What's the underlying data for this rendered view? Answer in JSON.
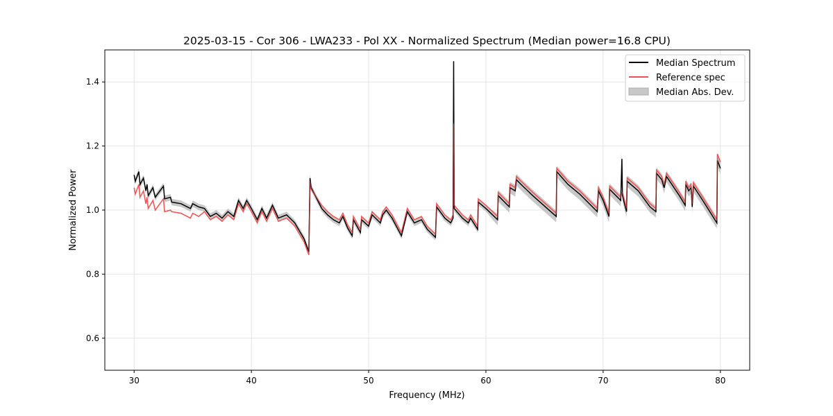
{
  "chart_data": {
    "type": "line",
    "title": "2025-03-15 - Cor 306 - LWA233 - Pol XX - Normalized Spectrum (Median power=16.8 CPU)",
    "xlabel": "Frequency (MHz)",
    "ylabel": "Normalized Power",
    "xlim": [
      27.5,
      82.5
    ],
    "ylim": [
      0.5,
      1.5
    ],
    "xticks": [
      30,
      40,
      50,
      60,
      70,
      80
    ],
    "yticks": [
      0.6,
      0.8,
      1.0,
      1.2,
      1.4
    ],
    "grid": true,
    "legend_position": "top-right",
    "colors": {
      "median": "#000000",
      "reference": "#f05050",
      "mad": "#b0b0b0",
      "overlap": "#8b0000"
    },
    "x": [
      30.0,
      30.1,
      30.4,
      30.5,
      30.8,
      31.0,
      31.1,
      31.2,
      31.6,
      31.8,
      32.5,
      32.6,
      33.1,
      33.2,
      34.0,
      34.8,
      35.0,
      35.5,
      36.0,
      36.5,
      37.0,
      37.5,
      38.0,
      38.5,
      38.9,
      39.3,
      39.6,
      40.0,
      40.5,
      40.9,
      41.3,
      41.8,
      42.3,
      43.0,
      43.7,
      44.5,
      44.9,
      45.0,
      45.1,
      46.0,
      46.5,
      47.0,
      47.5,
      47.8,
      48.2,
      48.6,
      48.7,
      49.3,
      49.4,
      50.0,
      50.3,
      51.0,
      51.2,
      51.5,
      52.0,
      52.5,
      52.8,
      53.3,
      53.9,
      54.5,
      55.0,
      55.7,
      55.8,
      56.5,
      57.0,
      57.2,
      57.25,
      57.3,
      58.0,
      58.5,
      58.7,
      59.3,
      59.35,
      60.0,
      61.0,
      61.05,
      62.0,
      62.05,
      62.5,
      62.6,
      63.0,
      64.0,
      66.0,
      66.05,
      67.0,
      68.0,
      69.5,
      69.6,
      70.0,
      70.5,
      70.55,
      71.5,
      71.6,
      71.65,
      72.0,
      72.05,
      73.0,
      74.0,
      74.5,
      74.55,
      75.0,
      75.2,
      75.4,
      76.5,
      77.0,
      77.05,
      77.3,
      77.5,
      77.6,
      77.7,
      78.5,
      79.7,
      79.75,
      80.0
    ],
    "series": [
      {
        "name": "Median Spectrum",
        "values": [
          1.11,
          1.09,
          1.12,
          1.08,
          1.1,
          1.06,
          1.08,
          1.045,
          1.07,
          1.04,
          1.075,
          1.035,
          1.04,
          1.025,
          1.02,
          1.005,
          1.02,
          1.01,
          1.005,
          0.98,
          0.99,
          0.975,
          0.995,
          0.98,
          1.03,
          1.005,
          1.03,
          1.005,
          0.97,
          1.005,
          0.975,
          1.015,
          0.975,
          0.985,
          0.96,
          0.91,
          0.87,
          1.1,
          1.07,
          1.005,
          0.985,
          0.97,
          0.96,
          0.98,
          0.945,
          0.92,
          0.97,
          0.93,
          0.97,
          0.95,
          0.985,
          0.96,
          0.985,
          1.0,
          0.975,
          0.94,
          0.92,
          0.995,
          0.96,
          0.97,
          0.94,
          0.915,
          1.01,
          0.975,
          0.96,
          0.975,
          1.465,
          1.005,
          0.975,
          0.96,
          0.975,
          0.94,
          1.025,
          1.005,
          0.97,
          1.045,
          1.01,
          1.07,
          1.06,
          1.095,
          1.08,
          1.045,
          0.98,
          1.12,
          1.08,
          1.05,
          0.995,
          1.06,
          1.03,
          0.98,
          1.065,
          1.03,
          1.16,
          1.045,
          0.995,
          1.09,
          1.06,
          1.01,
          0.995,
          1.115,
          1.095,
          1.07,
          1.105,
          1.045,
          1.015,
          1.08,
          1.06,
          1.07,
          1.01,
          1.075,
          1.03,
          0.96,
          1.155,
          1.13
        ]
      },
      {
        "name": "Reference spec",
        "values": [
          1.07,
          1.05,
          1.08,
          1.04,
          1.06,
          1.02,
          1.04,
          1.005,
          1.03,
          1.0,
          1.035,
          0.995,
          1.0,
          0.995,
          0.99,
          0.975,
          0.99,
          0.98,
          0.995,
          0.97,
          0.98,
          0.965,
          0.985,
          0.97,
          1.02,
          0.995,
          1.02,
          0.995,
          0.96,
          0.995,
          0.965,
          1.005,
          0.965,
          0.975,
          0.95,
          0.9,
          0.86,
          1.09,
          1.065,
          1.015,
          0.995,
          0.98,
          0.97,
          0.99,
          0.955,
          0.93,
          0.98,
          0.94,
          0.98,
          0.96,
          0.995,
          0.97,
          0.995,
          1.01,
          0.985,
          0.95,
          0.93,
          1.005,
          0.97,
          0.98,
          0.95,
          0.925,
          1.02,
          0.985,
          0.97,
          0.985,
          1.27,
          1.015,
          0.985,
          0.97,
          0.985,
          0.95,
          1.035,
          1.015,
          0.98,
          1.055,
          1.02,
          1.08,
          1.07,
          1.105,
          1.09,
          1.055,
          0.99,
          1.13,
          1.09,
          1.06,
          1.005,
          1.07,
          1.04,
          0.99,
          1.075,
          1.04,
          1.055,
          1.055,
          1.005,
          1.1,
          1.07,
          1.02,
          1.005,
          1.125,
          1.105,
          1.08,
          1.115,
          1.055,
          1.025,
          1.09,
          1.07,
          1.08,
          1.02,
          1.085,
          1.04,
          0.97,
          1.175,
          1.15
        ]
      }
    ],
    "mad_band": {
      "name": "Median Abs. Dev.",
      "segments": [
        {
          "x_max": 60,
          "value": 0.01
        },
        {
          "x_max": 81,
          "value": 0.018
        }
      ]
    },
    "legend": [
      "Median Spectrum",
      "Reference spec",
      "Median Abs. Dev."
    ]
  }
}
